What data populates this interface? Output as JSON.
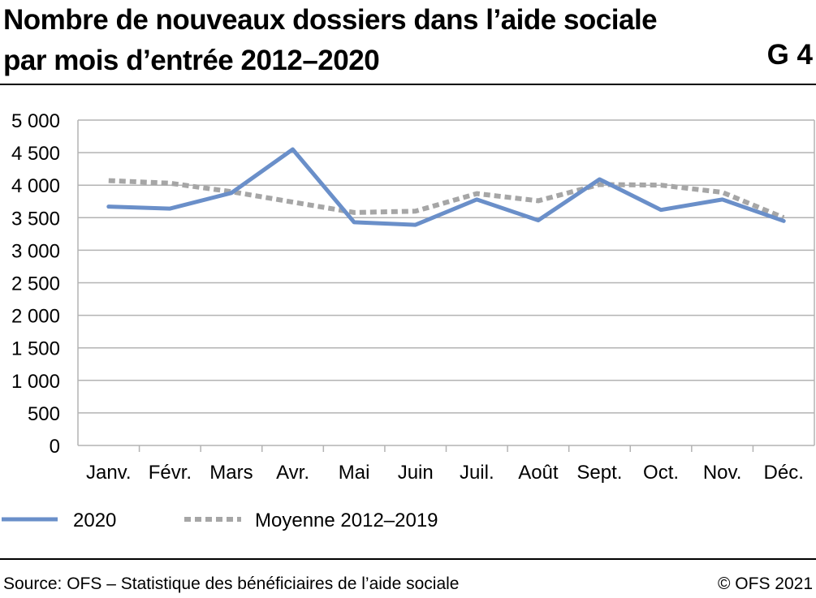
{
  "figure": {
    "title_line1": "Nombre de nouveaux dossiers dans l’aide sociale",
    "title_line2": "par mois d’entrée 2012–2020",
    "figure_id": "G 4",
    "source": "Source: OFS – Statistique des bénéficiaires de l’aide sociale",
    "copyright": "© OFS 2021"
  },
  "chart_data": {
    "type": "line",
    "title": "Nombre de nouveaux dossiers dans l’aide sociale par mois d’entrée 2012–2020",
    "xlabel": "",
    "ylabel": "",
    "categories": [
      "Janv.",
      "Févr.",
      "Mars",
      "Avr.",
      "Mai",
      "Juin",
      "Juil.",
      "Août",
      "Sept.",
      "Oct.",
      "Nov.",
      "Déc."
    ],
    "ylim": [
      0,
      5000
    ],
    "yticks": [
      0,
      500,
      1000,
      1500,
      2000,
      2500,
      3000,
      3500,
      4000,
      4500,
      5000
    ],
    "ytick_labels": [
      "0",
      "500",
      "1 000",
      "1 500",
      "2 000",
      "2 500",
      "3 000",
      "3 500",
      "4 000",
      "4 500",
      "5 000"
    ],
    "grid": true,
    "legend_position": "bottom-left",
    "series": [
      {
        "name": "2020",
        "color": "#6a8fc9",
        "style": "solid",
        "values": [
          3670,
          3640,
          3880,
          4550,
          3430,
          3390,
          3780,
          3460,
          4090,
          3620,
          3780,
          3450
        ]
      },
      {
        "name": "Moyenne 2012–2019",
        "color": "#a6a6a6",
        "style": "dotted",
        "values": [
          4070,
          4030,
          3900,
          3740,
          3580,
          3600,
          3870,
          3760,
          4010,
          4000,
          3890,
          3500
        ]
      }
    ]
  }
}
